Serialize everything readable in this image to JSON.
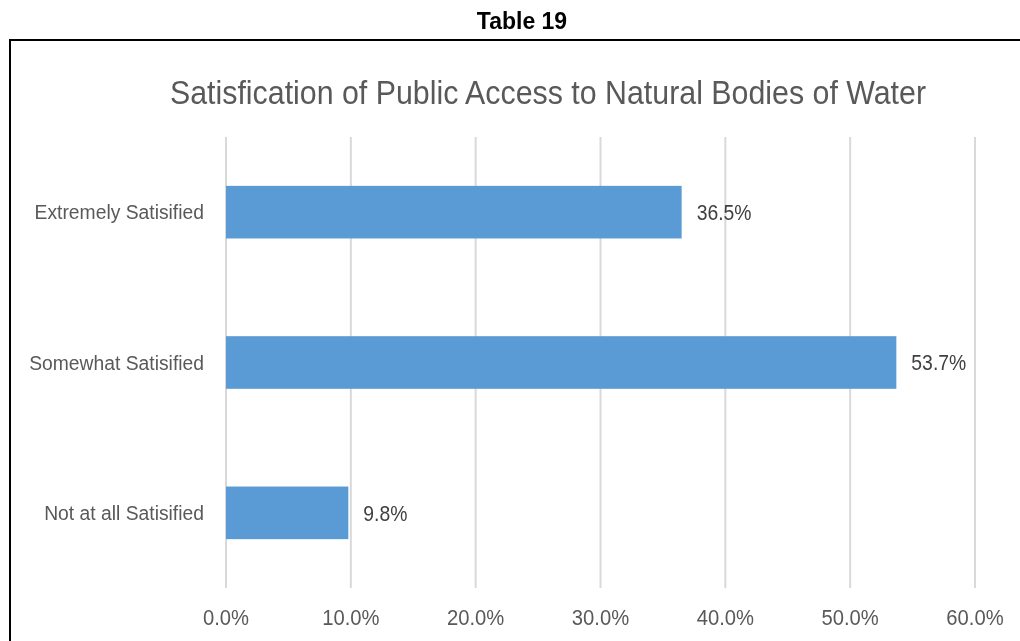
{
  "chart_data": {
    "type": "bar",
    "orientation": "horizontal",
    "title": "Satisfication of Public Access to Natural Bodies of Water",
    "annotations": [
      "Table 19"
    ],
    "categories": [
      "Extremely Satisified",
      "Somewhat Satisified",
      "Not at all Satisified"
    ],
    "values": [
      36.5,
      53.7,
      9.8
    ],
    "color": "#5b9bd5",
    "value_labels": [
      "36.5%",
      "53.7%",
      "9.8%"
    ],
    "xlim": [
      0,
      60
    ],
    "xticks": [
      {
        "value": 0,
        "label": "0.0%"
      },
      {
        "value": 10,
        "label": "10.0%"
      },
      {
        "value": 20,
        "label": "20.0%"
      },
      {
        "value": 30,
        "label": "30.0%"
      },
      {
        "value": 40,
        "label": "40.0%"
      },
      {
        "value": 50,
        "label": "50.0%"
      },
      {
        "value": 60,
        "label": "60.0%"
      }
    ],
    "grid": "x"
  }
}
